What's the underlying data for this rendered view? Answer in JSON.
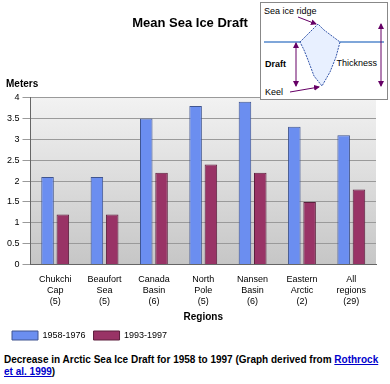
{
  "chart_data": {
    "type": "bar",
    "title": "Mean Sea Ice Draft",
    "y_label": "Meters",
    "x_label": "Regions",
    "categories": [
      [
        "Chukchi",
        "Cap",
        "(5)"
      ],
      [
        "Beaufort",
        "Sea",
        "(5)"
      ],
      [
        "Canada",
        "Basin",
        "(6)"
      ],
      [
        "North",
        "Pole",
        "(5)"
      ],
      [
        "Nansen",
        "Basin",
        "(6)"
      ],
      [
        "Eastern",
        "Arctic",
        "(2)"
      ],
      [
        "All",
        "regions",
        "(29)"
      ]
    ],
    "series": [
      {
        "name": "1958-1976",
        "color": "#6b8ef0",
        "values": [
          2.1,
          2.1,
          3.5,
          3.8,
          3.9,
          3.3,
          3.1
        ]
      },
      {
        "name": "1993-1997",
        "color": "#993366",
        "values": [
          1.2,
          1.2,
          2.2,
          2.4,
          2.2,
          1.5,
          1.8
        ]
      }
    ],
    "ylim": [
      0,
      4
    ],
    "yticks": [
      0,
      0.5,
      1,
      1.5,
      2,
      2.5,
      3,
      3.5,
      4
    ],
    "grid": true,
    "legend": "bottom-left"
  },
  "inset": {
    "ridge_label": "Sea ice ridge",
    "draft_label": "Draft",
    "thickness_label": "Thickness",
    "keel_label": "Keel"
  },
  "caption": {
    "text": "Decrease in Arctic Sea Ice Draft for 1958 to 1997 (Graph derived from",
    "link": "Rothrock et al. 1999",
    "end": ")"
  }
}
